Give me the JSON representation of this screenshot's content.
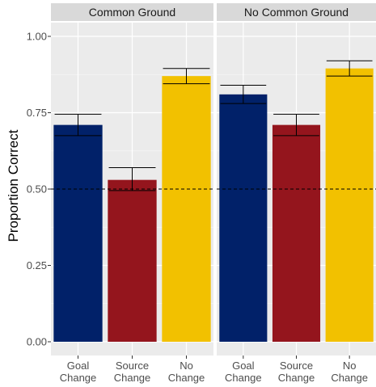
{
  "chart_data": {
    "type": "bar",
    "ylabel": "Proportion Correct",
    "xlabel": "",
    "ylim": [
      0,
      1.0
    ],
    "yticks": [
      "0.00",
      "0.25",
      "0.50",
      "0.75",
      "1.00"
    ],
    "yticks_values": [
      0,
      0.25,
      0.5,
      0.75,
      1.0
    ],
    "reference_line": 0.5,
    "grid": true,
    "panels": [
      {
        "strip": "Common Ground",
        "categories": [
          [
            "Goal",
            "Change"
          ],
          [
            "Source",
            "Change"
          ],
          [
            "No",
            "Change"
          ]
        ],
        "values": [
          0.71,
          0.53,
          0.87
        ],
        "error_low": [
          0.675,
          0.495,
          0.845
        ],
        "error_high": [
          0.745,
          0.57,
          0.895
        ]
      },
      {
        "strip": "No Common Ground",
        "categories": [
          [
            "Goal",
            "Change"
          ],
          [
            "Source",
            "Change"
          ],
          [
            "No",
            "Change"
          ]
        ],
        "values": [
          0.81,
          0.71,
          0.895
        ],
        "error_low": [
          0.78,
          0.675,
          0.87
        ],
        "error_high": [
          0.84,
          0.745,
          0.92
        ]
      }
    ],
    "colors": [
      "#012169",
      "#94151d",
      "#f2c100"
    ]
  }
}
